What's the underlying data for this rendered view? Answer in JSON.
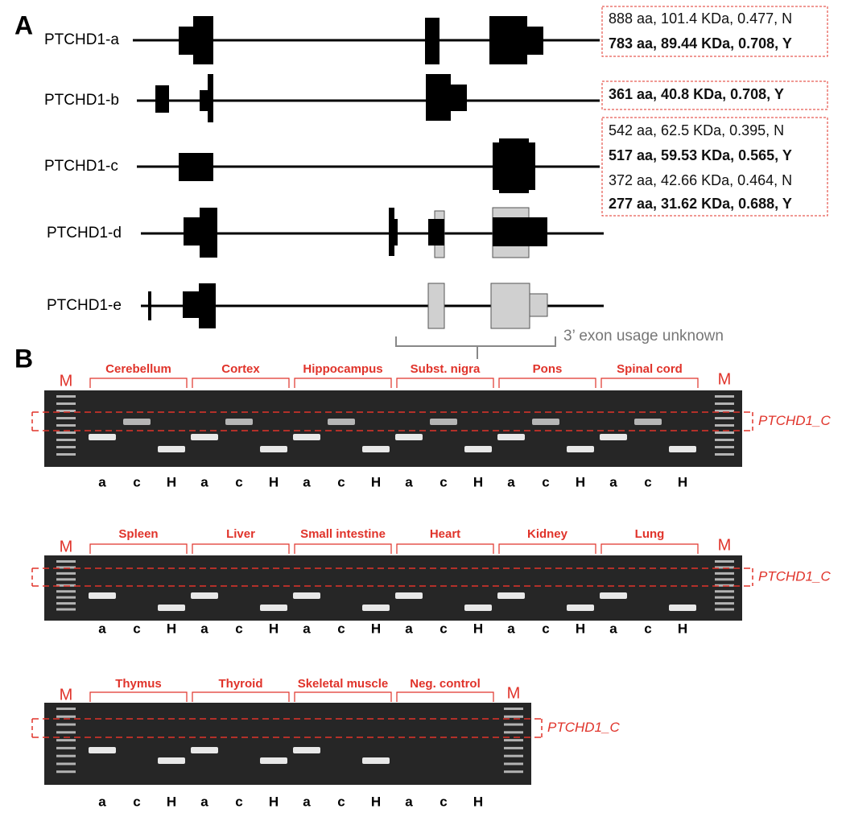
{
  "panels": [
    {
      "label": "A",
      "transcripts": [
        {
          "name": "PTCHD1-a"
        },
        {
          "name": "PTCHD1-b"
        },
        {
          "name": "PTCHD1-c"
        },
        {
          "name": "PTCHD1-d"
        },
        {
          "name": "PTCHD1-e"
        }
      ],
      "protein_boxes": [
        {
          "lines": [
            {
              "text": "888 aa, 101.4 KDa, 0.477, N",
              "bold": false
            },
            {
              "text": "783 aa, 89.44 KDa, 0.708, Y",
              "bold": true
            }
          ]
        },
        {
          "lines": [
            {
              "text": "361 aa, 40.8 KDa, 0.708, Y",
              "bold": true
            }
          ]
        },
        {
          "lines": [
            {
              "text": "542 aa, 62.5 KDa, 0.395, N",
              "bold": false
            },
            {
              "text": "517 aa, 59.53 KDa, 0.565, Y",
              "bold": true
            },
            {
              "text": "372 aa, 42.66 KDa, 0.464, N",
              "bold": false
            },
            {
              "text": "277 aa, 31.62 KDa, 0.688, Y",
              "bold": true
            }
          ]
        }
      ],
      "note": "3’ exon usage unknown"
    },
    {
      "label": "B",
      "gels": [
        {
          "markers": [
            "M",
            "M"
          ],
          "target": "PTCHD1_C",
          "tissues": [
            {
              "name": "Cerebellum",
              "lanes": [
                "a",
                "c",
                "H"
              ]
            },
            {
              "name": "Cortex",
              "lanes": [
                "a",
                "c",
                "H"
              ]
            },
            {
              "name": "Hippocampus",
              "lanes": [
                "a",
                "c",
                "H"
              ]
            },
            {
              "name": "Subst. nigra",
              "lanes": [
                "a",
                "c",
                "H"
              ]
            },
            {
              "name": "Pons",
              "lanes": [
                "a",
                "c",
                "H"
              ]
            },
            {
              "name": "Spinal cord",
              "lanes": [
                "a",
                "c",
                "H"
              ]
            }
          ]
        },
        {
          "markers": [
            "M",
            "M"
          ],
          "target": "PTCHD1_C",
          "tissues": [
            {
              "name": "Spleen",
              "lanes": [
                "a",
                "c",
                "H"
              ]
            },
            {
              "name": "Liver",
              "lanes": [
                "a",
                "c",
                "H"
              ]
            },
            {
              "name": "Small intestine",
              "lanes": [
                "a",
                "c",
                "H"
              ]
            },
            {
              "name": "Heart",
              "lanes": [
                "a",
                "c",
                "H"
              ]
            },
            {
              "name": "Kidney",
              "lanes": [
                "a",
                "c",
                "H"
              ]
            },
            {
              "name": "Lung",
              "lanes": [
                "a",
                "c",
                "H"
              ]
            }
          ]
        },
        {
          "markers": [
            "M",
            "M"
          ],
          "target": "PTCHD1_C",
          "tissues": [
            {
              "name": "Thymus",
              "lanes": [
                "a",
                "c",
                "H"
              ]
            },
            {
              "name": "Thyroid",
              "lanes": [
                "a",
                "c",
                "H"
              ]
            },
            {
              "name": "Skeletal muscle",
              "lanes": [
                "a",
                "c",
                "H"
              ]
            },
            {
              "name": "Neg. control",
              "lanes": [
                "a",
                "c",
                "H"
              ]
            }
          ]
        }
      ]
    }
  ]
}
